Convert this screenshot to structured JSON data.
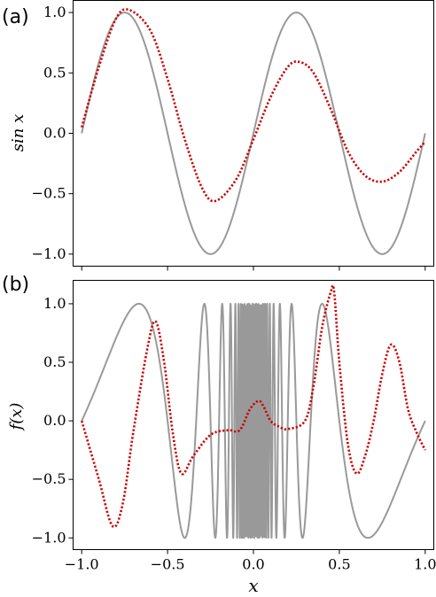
{
  "chart_data": [
    {
      "type": "line",
      "panel_label": "(a)",
      "ylabel": "sin x",
      "xlabel": "",
      "xlim": [
        -1.05,
        1.05
      ],
      "ylim": [
        -1.1,
        1.1
      ],
      "xticks": [
        -1.0,
        -0.5,
        0.0,
        0.5,
        1.0
      ],
      "yticks": [
        1.0,
        0.5,
        0.0,
        -0.5,
        -1.0
      ],
      "ytick_labels": [
        "1.0",
        "0.5",
        "0.0",
        "−0.5",
        "−1.0"
      ],
      "grid": false,
      "series": [
        {
          "style": "solid",
          "color": "#999999",
          "x": [
            -1.0,
            -0.75,
            -0.5,
            -0.25,
            0.0,
            0.25,
            0.5,
            0.75,
            1.0
          ],
          "y": [
            0.0,
            1.0,
            0.0,
            -1.0,
            0.0,
            1.0,
            0.0,
            -1.0,
            0.0
          ]
        },
        {
          "style": "dotted",
          "color": "#cc0000",
          "x": [
            -1.0,
            -0.9,
            -0.8,
            -0.72,
            -0.6,
            -0.5,
            -0.4,
            -0.3,
            -0.22,
            -0.1,
            0.0,
            0.1,
            0.2,
            0.27,
            0.35,
            0.45,
            0.55,
            0.65,
            0.75,
            0.85,
            0.95,
            1.0
          ],
          "y": [
            0.05,
            0.55,
            0.95,
            1.02,
            0.85,
            0.45,
            -0.05,
            -0.45,
            -0.56,
            -0.38,
            -0.05,
            0.3,
            0.55,
            0.59,
            0.5,
            0.2,
            -0.15,
            -0.35,
            -0.4,
            -0.32,
            -0.15,
            -0.07
          ]
        }
      ]
    },
    {
      "type": "line",
      "panel_label": "(b)",
      "ylabel": "f(x)",
      "xlabel": "x",
      "xlim": [
        -1.05,
        1.05
      ],
      "ylim": [
        -1.1,
        1.2
      ],
      "xticks": [
        -1.0,
        -0.5,
        0.0,
        0.5,
        1.0
      ],
      "xtick_labels": [
        "−1.0",
        "−0.5",
        "0.0",
        "0.5",
        "1.0"
      ],
      "yticks": [
        1.0,
        0.5,
        0.0,
        -0.5,
        -1.0
      ],
      "ytick_labels": [
        "1.0",
        "0.5",
        "0.0",
        "−0.5",
        "−1.0"
      ],
      "grid": false,
      "series": [
        {
          "style": "solid",
          "color": "#999999",
          "function": "sin(pi / x)"
        },
        {
          "style": "dotted",
          "color": "#cc0000",
          "x": [
            -1.0,
            -0.9,
            -0.82,
            -0.76,
            -0.7,
            -0.62,
            -0.57,
            -0.52,
            -0.47,
            -0.42,
            -0.35,
            -0.25,
            -0.15,
            -0.08,
            -0.02,
            0.03,
            0.06,
            0.1,
            0.15,
            0.2,
            0.3,
            0.35,
            0.4,
            0.45,
            0.47,
            0.5,
            0.55,
            0.6,
            0.65,
            0.7,
            0.75,
            0.8,
            0.85,
            0.9,
            0.95,
            1.0
          ],
          "y": [
            0.0,
            -0.5,
            -0.9,
            -0.7,
            -0.1,
            0.6,
            0.85,
            0.5,
            -0.1,
            -0.45,
            -0.3,
            -0.12,
            -0.08,
            -0.08,
            0.1,
            0.17,
            0.12,
            0.0,
            -0.05,
            -0.07,
            0.0,
            0.3,
            0.8,
            1.1,
            1.1,
            0.5,
            -0.2,
            -0.45,
            -0.3,
            0.0,
            0.4,
            0.65,
            0.5,
            0.1,
            -0.1,
            -0.25
          ]
        }
      ]
    }
  ]
}
